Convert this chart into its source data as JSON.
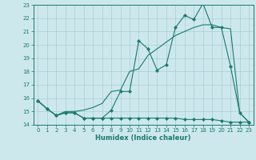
{
  "xlabel": "Humidex (Indice chaleur)",
  "x": [
    0,
    1,
    2,
    3,
    4,
    5,
    6,
    7,
    8,
    9,
    10,
    11,
    12,
    13,
    14,
    15,
    16,
    17,
    18,
    19,
    20,
    21,
    22,
    23
  ],
  "line1": [
    15.8,
    15.2,
    14.7,
    14.9,
    14.9,
    14.5,
    14.5,
    14.5,
    15.1,
    16.5,
    16.5,
    20.3,
    19.7,
    18.1,
    18.5,
    21.3,
    22.2,
    21.9,
    23.1,
    21.3,
    21.3,
    18.4,
    14.9,
    14.2
  ],
  "line2": [
    15.8,
    15.2,
    14.7,
    15.0,
    15.0,
    15.1,
    15.3,
    15.6,
    16.5,
    16.6,
    18.0,
    18.2,
    19.2,
    19.7,
    20.2,
    20.7,
    21.0,
    21.3,
    21.5,
    21.5,
    21.3,
    21.2,
    14.9,
    14.2
  ],
  "line3": [
    15.8,
    15.2,
    14.7,
    14.9,
    14.9,
    14.5,
    14.5,
    14.5,
    14.5,
    14.5,
    14.5,
    14.5,
    14.5,
    14.5,
    14.5,
    14.5,
    14.4,
    14.4,
    14.4,
    14.4,
    14.3,
    14.2,
    14.2,
    14.2
  ],
  "color": "#1a7a6e",
  "bg_color": "#cde8ec",
  "grid_color": "#a8cdd4",
  "ylim": [
    14,
    23
  ],
  "yticks": [
    14,
    15,
    16,
    17,
    18,
    19,
    20,
    21,
    22,
    23
  ],
  "xticks": [
    0,
    1,
    2,
    3,
    4,
    5,
    6,
    7,
    8,
    9,
    10,
    11,
    12,
    13,
    14,
    15,
    16,
    17,
    18,
    19,
    20,
    21,
    22,
    23
  ]
}
